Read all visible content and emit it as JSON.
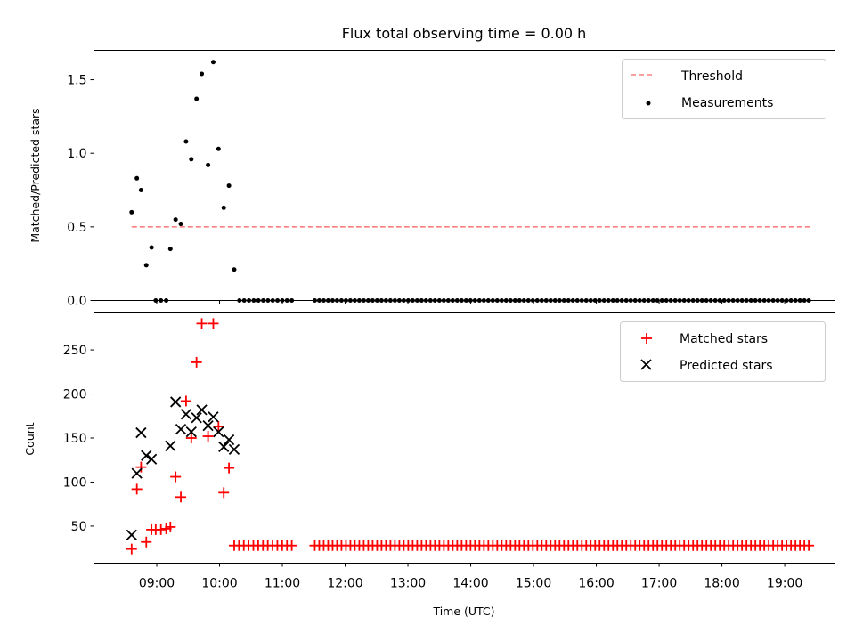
{
  "title": "Flux total observing time = 0.00 h",
  "chart_data": [
    {
      "type": "scatter",
      "ylabel": "Matched/Predicted stars",
      "ylim": [
        0,
        1.7
      ],
      "yticks": [
        "0.0",
        "0.5",
        "1.0",
        "1.5"
      ],
      "legend_position": "top-right",
      "threshold": {
        "name": "Threshold",
        "value": 0.5,
        "x_start": "08:36",
        "x_end": "19:24",
        "color": "#ff8080"
      },
      "series": [
        {
          "name": "Measurements",
          "color": "#000000",
          "points": [
            [
              "08:36",
              0.6
            ],
            [
              "08:41",
              0.83
            ],
            [
              "08:45",
              0.75
            ],
            [
              "08:50",
              0.24
            ],
            [
              "08:55",
              0.36
            ],
            [
              "09:13",
              0.35
            ],
            [
              "09:18",
              0.55
            ],
            [
              "09:23",
              0.52
            ],
            [
              "09:28",
              1.08
            ],
            [
              "09:33",
              0.96
            ],
            [
              "09:38",
              1.37
            ],
            [
              "09:43",
              1.54
            ],
            [
              "09:49",
              0.92
            ],
            [
              "09:54",
              1.62
            ],
            [
              "09:59",
              1.03
            ],
            [
              "10:04",
              0.63
            ],
            [
              "10:09",
              0.78
            ],
            [
              "10:14",
              0.21
            ]
          ],
          "zero_segments": [
            [
              "08:59",
              "09:09",
              3
            ],
            [
              "10:19",
              "11:09",
              12
            ],
            [
              "11:31",
              "19:23",
              112
            ]
          ]
        }
      ]
    },
    {
      "type": "scatter",
      "ylabel": "Count",
      "xlabel": "Time (UTC)",
      "ylim": [
        8,
        292
      ],
      "yticks": [
        "50",
        "100",
        "150",
        "200",
        "250"
      ],
      "xticks": [
        "09:00",
        "10:00",
        "11:00",
        "12:00",
        "13:00",
        "14:00",
        "15:00",
        "16:00",
        "17:00",
        "18:00",
        "19:00"
      ],
      "xlim": [
        "08:00",
        "19:48"
      ],
      "legend_position": "top-right",
      "series": [
        {
          "name": "Matched stars",
          "marker": "plus",
          "color": "#ff0000",
          "points": [
            [
              "08:36",
              24
            ],
            [
              "08:41",
              92
            ],
            [
              "08:45",
              117
            ],
            [
              "08:50",
              32
            ],
            [
              "08:55",
              46
            ],
            [
              "08:59",
              46
            ],
            [
              "09:04",
              46
            ],
            [
              "09:09",
              47
            ],
            [
              "09:13",
              49
            ],
            [
              "09:18",
              106
            ],
            [
              "09:23",
              83
            ],
            [
              "09:28",
              192
            ],
            [
              "09:33",
              150
            ],
            [
              "09:38",
              236
            ],
            [
              "09:43",
              280
            ],
            [
              "09:49",
              152
            ],
            [
              "09:54",
              280
            ],
            [
              "09:59",
              163
            ],
            [
              "10:04",
              88
            ],
            [
              "10:09",
              116
            ]
          ],
          "flat_segments": [
            [
              "10:14",
              "11:09",
              28,
              13
            ],
            [
              "11:31",
              "19:23",
              28,
              112
            ]
          ]
        },
        {
          "name": "Predicted stars",
          "marker": "x",
          "color": "#000000",
          "points": [
            [
              "08:36",
              40
            ],
            [
              "08:41",
              110
            ],
            [
              "08:45",
              156
            ],
            [
              "08:50",
              130
            ],
            [
              "08:55",
              126
            ],
            [
              "09:13",
              141
            ],
            [
              "09:18",
              191
            ],
            [
              "09:23",
              160
            ],
            [
              "09:28",
              177
            ],
            [
              "09:33",
              157
            ],
            [
              "09:38",
              173
            ],
            [
              "09:43",
              182
            ],
            [
              "09:49",
              164
            ],
            [
              "09:54",
              174
            ],
            [
              "09:59",
              157
            ],
            [
              "10:04",
              140
            ],
            [
              "10:09",
              148
            ],
            [
              "10:14",
              137
            ]
          ]
        }
      ]
    }
  ]
}
